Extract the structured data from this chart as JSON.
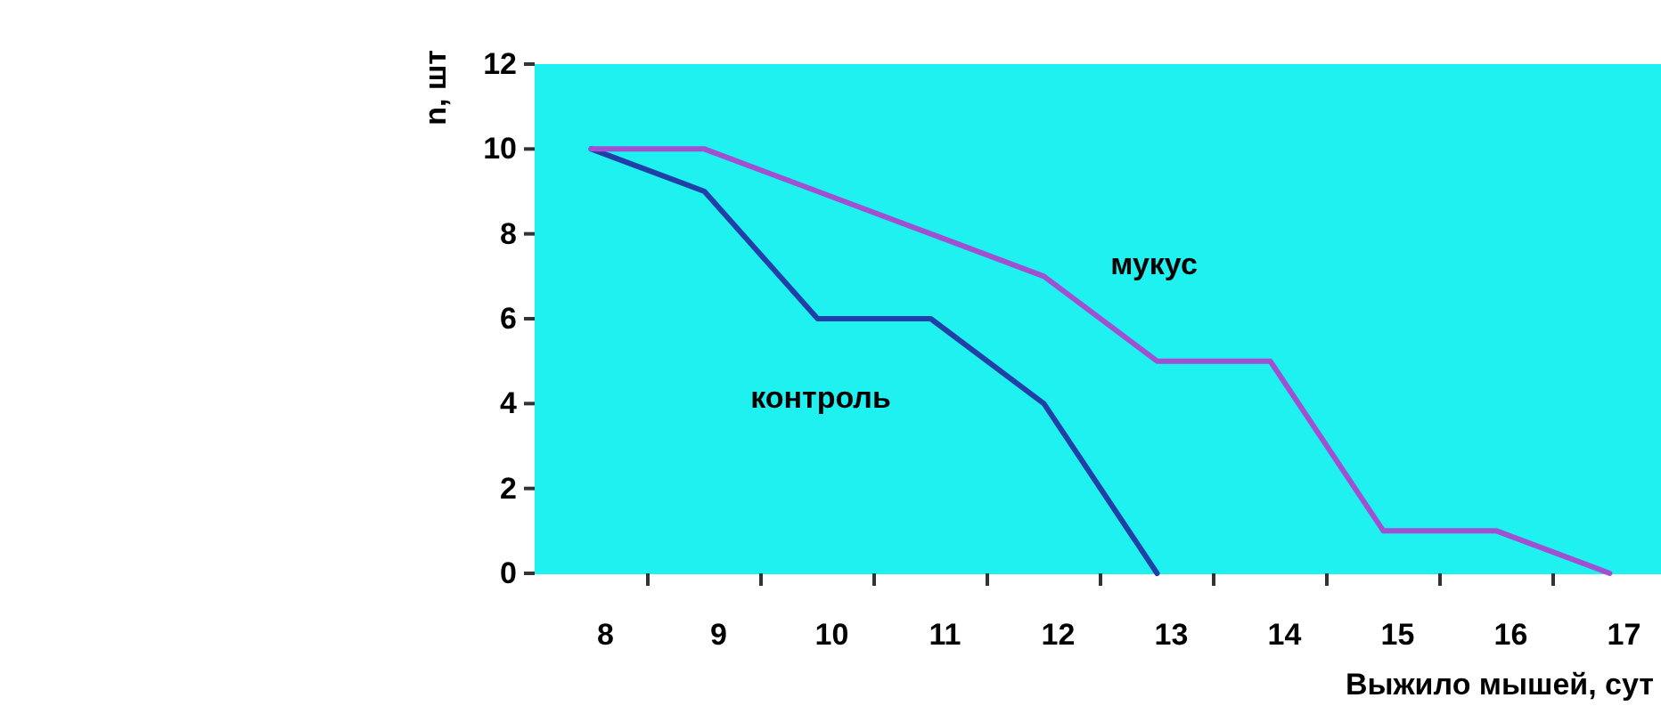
{
  "chart_data": {
    "type": "line",
    "xlabel": "Выжило мышей, сут",
    "ylabel": "n, шт",
    "categories": [
      "8",
      "9",
      "10",
      "11",
      "12",
      "13",
      "14",
      "15",
      "16",
      "17"
    ],
    "ylim": [
      0,
      12
    ],
    "yticks": [
      0,
      2,
      4,
      6,
      8,
      10,
      12
    ],
    "grid": false,
    "legend": false,
    "marker": "none",
    "line_style": "solid",
    "series": [
      {
        "name": "контроль",
        "color": "#2040a8",
        "values": [
          10,
          9,
          6,
          6,
          4,
          0,
          null,
          null,
          null,
          null
        ]
      },
      {
        "name": "мукус",
        "color": "#a050d0",
        "values": [
          10,
          10,
          9,
          8,
          7,
          5,
          5,
          1,
          1,
          0
        ]
      }
    ]
  }
}
